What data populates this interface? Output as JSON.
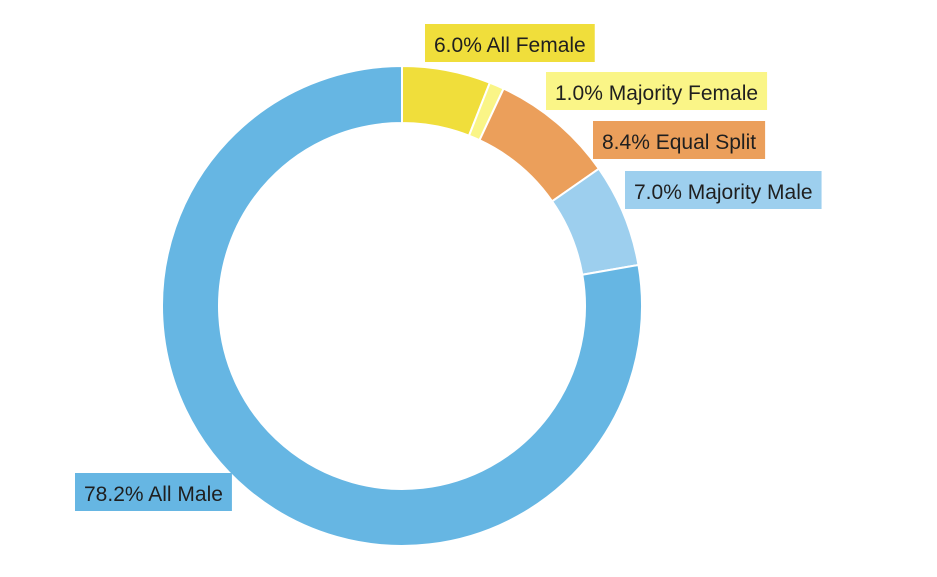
{
  "chart_data": {
    "type": "pie",
    "donut": true,
    "slices": [
      {
        "name": "All Female",
        "value": 6.0,
        "label": "6.0% All Female",
        "color": "#f0de3b"
      },
      {
        "name": "Majority Female",
        "value": 1.0,
        "label": "1.0% Majority Female",
        "color": "#faf587"
      },
      {
        "name": "Equal Split",
        "value": 8.4,
        "label": "8.4% Equal Split",
        "color": "#eb9f5b"
      },
      {
        "name": "Majority Male",
        "value": 7.0,
        "label": "7.0% Majority Male",
        "color": "#9dcfee"
      },
      {
        "name": "All Male",
        "value": 78.2,
        "label": "78.2% All Male",
        "color": "#66b6e3"
      }
    ]
  }
}
